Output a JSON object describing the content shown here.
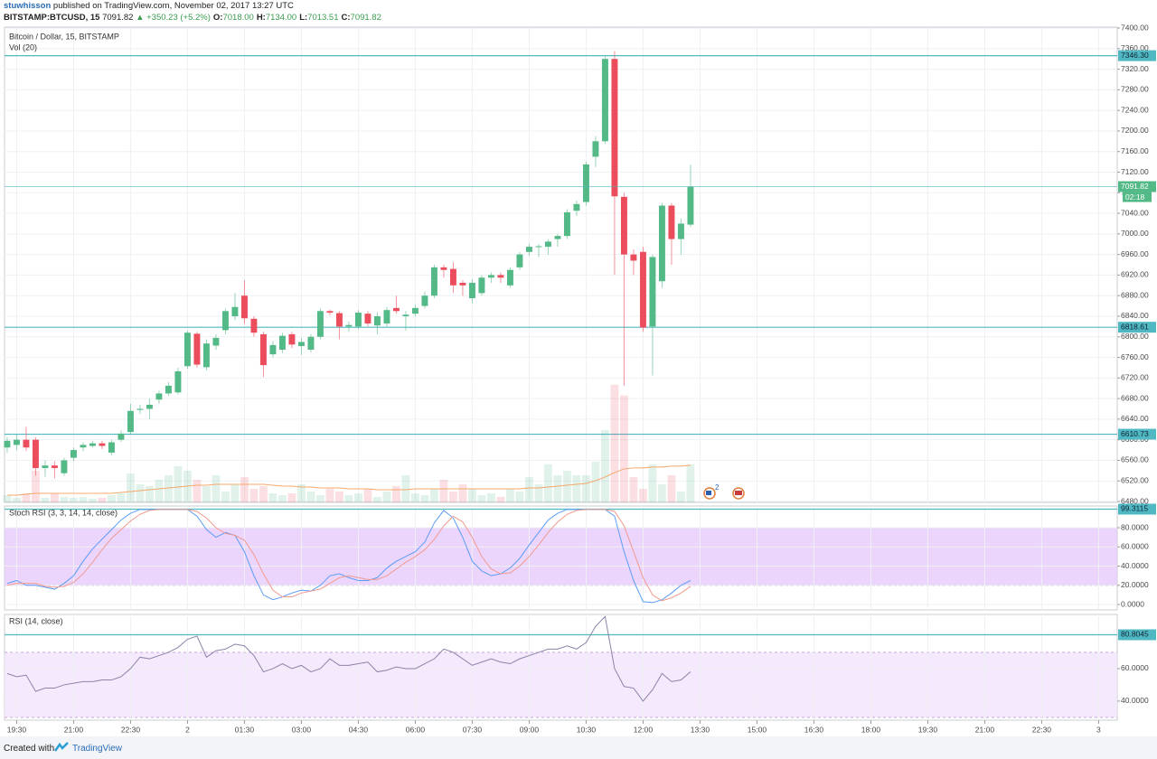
{
  "header": {
    "author": "stuwhisson",
    "published": "published on TradingView.com, November 02, 2017 13:27 UTC",
    "symbol": "BITSTAMP:BTCUSD, 15",
    "last": "7091.82",
    "change": "▲ +350.23 (+5.2%)",
    "ohlc": [
      {
        "label": "O:",
        "value": "7018.00"
      },
      {
        "label": "H:",
        "value": "7134.00"
      },
      {
        "label": "L:",
        "value": "7013.51"
      },
      {
        "label": "C:",
        "value": "7091.82"
      }
    ]
  },
  "footer": {
    "created": "Created with",
    "brand": "TradingView"
  },
  "event_badge": "2",
  "chart_data": [
    {
      "type": "candlestick",
      "title": "Bitcoin / Dollar, 15, BITSTAMP",
      "volume_title": "Vol (20)",
      "x": [
        -4.75,
        -4.5,
        -4.25,
        -4,
        -3.75,
        -3.5,
        -3.25,
        -3,
        -2.75,
        -2.5,
        -2.25,
        -2,
        -1.75,
        -1.5,
        -1.25,
        -1,
        -0.75,
        -0.5,
        -0.25,
        0,
        0.25,
        0.5,
        0.75,
        1,
        1.25,
        1.5,
        1.75,
        2,
        2.25,
        2.5,
        2.75,
        3,
        3.25,
        3.5,
        3.75,
        4,
        4.25,
        4.5,
        4.75,
        5,
        5.25,
        5.5,
        5.75,
        6,
        6.25,
        6.5,
        6.75,
        7,
        7.25,
        7.5,
        7.75,
        8,
        8.25,
        8.5,
        8.75,
        9,
        9.25,
        9.5,
        9.75,
        10,
        10.25,
        10.5,
        10.75,
        11,
        11.25,
        11.5,
        11.75,
        12,
        12.25,
        12.5,
        12.75,
        13,
        13.25
      ],
      "open": [
        6585,
        6590,
        6600,
        6600,
        6545,
        6550,
        6535,
        6565,
        6585,
        6588,
        6593,
        6575,
        6600,
        6615,
        6658,
        6660,
        6678,
        6690,
        6692,
        6743,
        6806,
        6741,
        6783,
        6813,
        6840,
        6880,
        6835,
        6805,
        6766,
        6775,
        6805,
        6782,
        6775,
        6800,
        6850,
        6846,
        6820,
        6820,
        6845,
        6822,
        6826,
        6856,
        6840,
        6845,
        6860,
        6880,
        6935,
        6932,
        6905,
        6875,
        6885,
        6915,
        6920,
        6900,
        6935,
        6965,
        6975,
        6975,
        6990,
        6996,
        7045,
        7062,
        7150,
        7180,
        7340,
        7072,
        6960,
        6965,
        6820,
        6908,
        7055,
        6990,
        7018.0
      ],
      "high": [
        6605,
        6610,
        6625,
        6605,
        6560,
        6558,
        6565,
        6585,
        6595,
        6598,
        6598,
        6600,
        6618,
        6670,
        6668,
        6680,
        6695,
        6712,
        6740,
        6812,
        6810,
        6795,
        6805,
        6855,
        6885,
        6910,
        6840,
        6810,
        6792,
        6808,
        6810,
        6798,
        6805,
        6855,
        6853,
        6850,
        6830,
        6852,
        6850,
        6848,
        6858,
        6880,
        6850,
        6862,
        6888,
        6940,
        6940,
        6945,
        6910,
        6912,
        6920,
        6925,
        6925,
        6935,
        6965,
        6980,
        6980,
        6990,
        7000,
        7048,
        7065,
        7140,
        7190,
        7346,
        7355,
        7080,
        6970,
        6975,
        6960,
        7060,
        7060,
        7030,
        7134.0
      ],
      "low": [
        6575,
        6580,
        6578,
        6530,
        6528,
        6525,
        6530,
        6558,
        6578,
        6585,
        6582,
        6570,
        6596,
        6610,
        6650,
        6640,
        6670,
        6685,
        6688,
        6738,
        6740,
        6735,
        6775,
        6805,
        6832,
        6825,
        6800,
        6722,
        6760,
        6768,
        6778,
        6765,
        6770,
        6795,
        6842,
        6795,
        6810,
        6815,
        6820,
        6805,
        6820,
        6845,
        6812,
        6840,
        6855,
        6875,
        6915,
        6885,
        6880,
        6865,
        6880,
        6905,
        6905,
        6895,
        6930,
        6958,
        6955,
        6960,
        6975,
        6990,
        7035,
        7055,
        7130,
        7175,
        6920,
        6705,
        6920,
        6810,
        6725,
        6895,
        6940,
        6960,
        7013.51
      ],
      "close": [
        6598,
        6600,
        6585,
        6545,
        6550,
        6545,
        6560,
        6580,
        6590,
        6593,
        6588,
        6595,
        6612,
        6656,
        6660,
        6668,
        6690,
        6705,
        6733,
        6808,
        6746,
        6787,
        6798,
        6850,
        6858,
        6836,
        6808,
        6745,
        6784,
        6802,
        6785,
        6790,
        6800,
        6850,
        6847,
        6820,
        6823,
        6847,
        6826,
        6840,
        6852,
        6850,
        6843,
        6856,
        6880,
        6935,
        6930,
        6900,
        6900,
        6905,
        6915,
        6920,
        6915,
        6930,
        6960,
        6975,
        6976,
        6985,
        6996,
        7042,
        7058,
        7135,
        7180,
        7340,
        7073,
        6960,
        6948,
        6818,
        6955,
        7055,
        6990,
        7020,
        7091.82
      ],
      "up_color": "#53b987",
      "down_color": "#eb4d5c",
      "volume": [
        8,
        5,
        10,
        35,
        5,
        10,
        6,
        5,
        6,
        4,
        5,
        8,
        10,
        32,
        20,
        18,
        25,
        30,
        40,
        35,
        25,
        18,
        30,
        12,
        20,
        28,
        15,
        18,
        10,
        8,
        10,
        20,
        12,
        8,
        15,
        12,
        8,
        10,
        15,
        6,
        12,
        18,
        30,
        10,
        8,
        15,
        25,
        12,
        20,
        15,
        8,
        10,
        6,
        15,
        12,
        28,
        20,
        42,
        30,
        35,
        30,
        30,
        45,
        80,
        130,
        118,
        28,
        15,
        42,
        20,
        30,
        12,
        42
      ],
      "volume_ma": [
        8,
        8,
        9,
        10,
        10,
        10,
        10,
        10,
        10,
        10,
        10,
        10,
        11,
        12,
        13,
        14,
        15,
        16,
        17,
        18,
        19,
        19,
        20,
        20,
        20,
        20,
        20,
        20,
        19,
        18,
        18,
        17,
        17,
        16,
        16,
        16,
        15,
        15,
        15,
        14,
        14,
        14,
        14,
        15,
        15,
        15,
        15,
        15,
        15,
        15,
        15,
        15,
        15,
        15,
        15,
        16,
        16,
        17,
        18,
        19,
        20,
        21,
        24,
        28,
        33,
        37,
        38,
        38,
        39,
        39,
        40,
        40,
        41
      ],
      "volume_ylim": [
        0,
        525
      ],
      "volume_ma_color": "#f5a86a",
      "ylim": [
        6478.3,
        7401.8
      ],
      "yticks": [
        {
          "value": 6480,
          "label": "6480.00"
        },
        {
          "value": 6520,
          "label": "6520.00"
        },
        {
          "value": 6560,
          "label": "6560.00"
        },
        {
          "value": 6600,
          "label": "6600.00"
        },
        {
          "value": 6640,
          "label": "6640.00"
        },
        {
          "value": 6680,
          "label": "6680.00"
        },
        {
          "value": 6720,
          "label": "6720.00"
        },
        {
          "value": 6760,
          "label": "6760.00"
        },
        {
          "value": 6800,
          "label": "6800.00"
        },
        {
          "value": 6840,
          "label": "6840.00"
        },
        {
          "value": 6880,
          "label": "6880.00"
        },
        {
          "value": 6920,
          "label": "6920.00"
        },
        {
          "value": 6960,
          "label": "6960.00"
        },
        {
          "value": 7000,
          "label": "7000.00"
        },
        {
          "value": 7040,
          "label": "7040.00"
        },
        {
          "value": 7080,
          "label": "7080.00"
        },
        {
          "value": 7120,
          "label": "7120.00"
        },
        {
          "value": 7160,
          "label": "7160.00"
        },
        {
          "value": 7200,
          "label": "7200.00"
        },
        {
          "value": 7240,
          "label": "7240.00"
        },
        {
          "value": 7280,
          "label": "7280.00"
        },
        {
          "value": 7320,
          "label": "7320.00"
        },
        {
          "value": 7360,
          "label": "7360.00"
        },
        {
          "value": 7400,
          "label": "7400.00"
        }
      ],
      "levels": [
        {
          "value": 7346.3,
          "label": "7346.30"
        },
        {
          "value": 6818.61,
          "label": "6818.61"
        },
        {
          "value": 6610.73,
          "label": "6610.73"
        }
      ],
      "level_color": "#4fb8c3",
      "last_price": {
        "value": 7091.82,
        "label": "7091.82"
      },
      "countdown": "02:18",
      "grid": true
    },
    {
      "type": "line",
      "title": "Stoch RSI (3, 3, 14, 14, close)",
      "x": [
        -4.75,
        -4.5,
        -4.25,
        -4,
        -3.75,
        -3.5,
        -3.25,
        -3,
        -2.75,
        -2.5,
        -2.25,
        -2,
        -1.75,
        -1.5,
        -1.25,
        -1,
        -0.75,
        -0.5,
        -0.25,
        0,
        0.25,
        0.5,
        0.75,
        1,
        1.25,
        1.5,
        1.75,
        2,
        2.25,
        2.5,
        2.75,
        3,
        3.25,
        3.5,
        3.75,
        4,
        4.25,
        4.5,
        4.75,
        5,
        5.25,
        5.5,
        5.75,
        6,
        6.25,
        6.5,
        6.75,
        7,
        7.25,
        7.5,
        7.75,
        8,
        8.25,
        8.5,
        8.75,
        9,
        9.25,
        9.5,
        9.75,
        10,
        10.25,
        10.5,
        10.75,
        11,
        11.25,
        11.5,
        11.75,
        12,
        12.25,
        12.5,
        12.75,
        13,
        13.25
      ],
      "series": [
        {
          "color": "#5b9cf6",
          "values": [
            22,
            25,
            20,
            20,
            18,
            16,
            22,
            30,
            45,
            58,
            68,
            78,
            88,
            95,
            99,
            99,
            99,
            99,
            99,
            99,
            92,
            78,
            70,
            75,
            72,
            55,
            30,
            10,
            5,
            8,
            12,
            15,
            14,
            20,
            30,
            32,
            28,
            25,
            25,
            28,
            38,
            45,
            50,
            55,
            65,
            85,
            98,
            90,
            70,
            45,
            35,
            30,
            32,
            38,
            48,
            62,
            75,
            88,
            95,
            99,
            99,
            99,
            99,
            99,
            92,
            55,
            25,
            3,
            2,
            5,
            12,
            20,
            25
          ]
        },
        {
          "color": "#f29a8d",
          "values": [
            20,
            22,
            22,
            22,
            19,
            18,
            19,
            23,
            32,
            44,
            57,
            69,
            78,
            87,
            94,
            98,
            99,
            99,
            99,
            99,
            97,
            90,
            80,
            74,
            72,
            67,
            52,
            32,
            15,
            8,
            8,
            12,
            14,
            16,
            22,
            28,
            30,
            28,
            26,
            26,
            30,
            37,
            44,
            50,
            57,
            68,
            82,
            92,
            86,
            70,
            50,
            37,
            32,
            33,
            40,
            50,
            62,
            75,
            86,
            94,
            98,
            99,
            99,
            99,
            97,
            82,
            55,
            28,
            10,
            4,
            7,
            12,
            19
          ]
        }
      ],
      "ylim": [
        -5.6,
        102.6
      ],
      "yticks": [
        {
          "value": 0,
          "label": "0.0000"
        },
        {
          "value": 20,
          "label": "20.0000"
        },
        {
          "value": 40,
          "label": "40.0000"
        },
        {
          "value": 60,
          "label": "60.0000"
        },
        {
          "value": 80,
          "label": "80.0000"
        }
      ],
      "bands": [
        20,
        80
      ],
      "band_fill": "#e6cafc",
      "band_line": "#b07cc6",
      "levels": [
        {
          "value": 99.3115,
          "label": "99.3115"
        }
      ],
      "level_color": "#4fb8c3",
      "grid": true
    },
    {
      "type": "line",
      "title": "RSI (14, close)",
      "x": [
        -4.75,
        -4.5,
        -4.25,
        -4,
        -3.75,
        -3.5,
        -3.25,
        -3,
        -2.75,
        -2.5,
        -2.25,
        -2,
        -1.75,
        -1.5,
        -1.25,
        -1,
        -0.75,
        -0.5,
        -0.25,
        0,
        0.25,
        0.5,
        0.75,
        1,
        1.25,
        1.5,
        1.75,
        2,
        2.25,
        2.5,
        2.75,
        3,
        3.25,
        3.5,
        3.75,
        4,
        4.25,
        4.5,
        4.75,
        5,
        5.25,
        5.5,
        5.75,
        6,
        6.25,
        6.5,
        6.75,
        7,
        7.25,
        7.5,
        7.75,
        8,
        8.25,
        8.5,
        8.75,
        9,
        9.25,
        9.5,
        9.75,
        10,
        10.25,
        10.5,
        10.75,
        11,
        11.25,
        11.5,
        11.75,
        12,
        12.25,
        12.5,
        12.75,
        13,
        13.25
      ],
      "series": [
        {
          "color": "#8c83a8",
          "values": [
            57,
            55,
            56,
            46,
            48,
            48,
            50,
            51,
            52,
            52,
            53,
            53,
            55,
            60,
            67,
            66,
            68,
            70,
            73,
            78,
            80,
            67,
            71,
            72,
            75,
            74,
            68,
            58,
            60,
            63,
            60,
            62,
            58,
            60,
            66,
            62,
            62,
            63,
            64,
            58,
            59,
            61,
            60,
            60,
            63,
            66,
            72,
            70,
            66,
            62,
            64,
            66,
            64,
            63,
            66,
            68,
            70,
            72,
            72,
            74,
            72,
            76,
            86,
            92,
            60,
            49,
            48,
            40,
            47,
            57,
            52,
            53,
            58
          ]
        }
      ],
      "ylim": [
        28.3,
        93.3
      ],
      "yticks": [
        {
          "value": 40,
          "label": "40.0000"
        },
        {
          "value": 60,
          "label": "60.0000"
        }
      ],
      "bands": [
        30,
        70
      ],
      "band_fill": "#f3e4fd",
      "band_line": "#c9a6da",
      "levels": [
        {
          "value": 80.8045,
          "label": "80.8045"
        }
      ],
      "level_color": "#4fb8c3",
      "grid": true,
      "xlim": [
        -4.82,
        24.49
      ],
      "xticks": [
        {
          "value": -4.5,
          "label": "19:30"
        },
        {
          "value": -3,
          "label": "21:00"
        },
        {
          "value": -1.5,
          "label": "22:30"
        },
        {
          "value": 0,
          "label": "2"
        },
        {
          "value": 1.5,
          "label": "01:30"
        },
        {
          "value": 3,
          "label": "03:00"
        },
        {
          "value": 4.5,
          "label": "04:30"
        },
        {
          "value": 6,
          "label": "06:00"
        },
        {
          "value": 7.5,
          "label": "07:30"
        },
        {
          "value": 9,
          "label": "09:00"
        },
        {
          "value": 10.5,
          "label": "10:30"
        },
        {
          "value": 12,
          "label": "12:00"
        },
        {
          "value": 13.5,
          "label": "13:30"
        },
        {
          "value": 15,
          "label": "15:00"
        },
        {
          "value": 16.5,
          "label": "16:30"
        },
        {
          "value": 18,
          "label": "18:00"
        },
        {
          "value": 19.5,
          "label": "19:30"
        },
        {
          "value": 21,
          "label": "21:00"
        },
        {
          "value": 22.5,
          "label": "22:30"
        },
        {
          "value": 24,
          "label": "3"
        }
      ]
    }
  ]
}
